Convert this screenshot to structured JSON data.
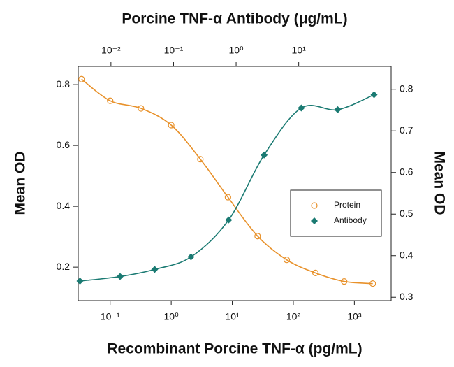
{
  "chart_data": {
    "type": "scatter",
    "x2_label": "Porcine TNF-α Antibody (μg/mL)",
    "x_label": "Recombinant Porcine TNF-α (pg/mL)",
    "y_label": "Mean OD",
    "y2_label": "Mean OD",
    "log_x": true,
    "xlim": [
      0.03,
      4000
    ],
    "xticks": [
      {
        "value": 0.1,
        "label": "10⁻¹"
      },
      {
        "value": 1,
        "label": "10⁰"
      },
      {
        "value": 10,
        "label": "10¹"
      },
      {
        "value": 100,
        "label": "10²"
      },
      {
        "value": 1000,
        "label": "10³"
      }
    ],
    "x2lim": [
      0.003,
      300
    ],
    "x2ticks": [
      {
        "value": 0.01,
        "label": "10⁻²"
      },
      {
        "value": 0.1,
        "label": "10⁻¹"
      },
      {
        "value": 1,
        "label": "10⁰"
      },
      {
        "value": 10,
        "label": "10¹"
      }
    ],
    "ylim": [
      0.09,
      0.86
    ],
    "yticks": [
      0.2,
      0.4,
      0.6,
      0.8
    ],
    "y2lim": [
      0.292,
      0.855
    ],
    "y2ticks": [
      0.3,
      0.4,
      0.5,
      0.6,
      0.7,
      0.8
    ],
    "legend": "right",
    "series": [
      {
        "name": "Protein",
        "color": "#e8912a",
        "marker": "circle",
        "x": [
          0.034,
          0.1,
          0.32,
          1,
          3,
          8.5,
          26,
          78,
          230,
          680,
          2000
        ],
        "values": [
          0.818,
          0.747,
          0.722,
          0.667,
          0.555,
          0.43,
          0.302,
          0.224,
          0.181,
          0.153,
          0.146
        ]
      },
      {
        "name": "Antibody",
        "color": "#1a7a72",
        "marker": "diamond",
        "axis": "y2",
        "xaxis": "x2",
        "x": [
          0.0032,
          0.014,
          0.05,
          0.19,
          0.76,
          2.8,
          11,
          42,
          160
        ],
        "values": [
          0.339,
          0.35,
          0.367,
          0.397,
          0.486,
          0.642,
          0.755,
          0.751,
          0.787
        ]
      }
    ]
  }
}
